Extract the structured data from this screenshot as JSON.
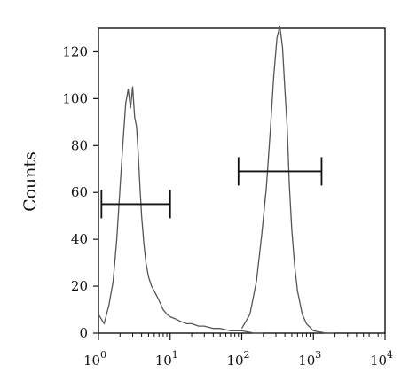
{
  "chart_data": {
    "type": "line",
    "title": "",
    "ylabel": "Counts",
    "xlabel": "",
    "x_scale": "log",
    "xlim": [
      1,
      10000
    ],
    "ylim": [
      0,
      130
    ],
    "grid": false,
    "x_ticks": [
      {
        "base": "10",
        "exp": "0",
        "value": 1
      },
      {
        "base": "10",
        "exp": "1",
        "value": 10
      },
      {
        "base": "10",
        "exp": "2",
        "value": 100
      },
      {
        "base": "10",
        "exp": "3",
        "value": 1000
      },
      {
        "base": "10",
        "exp": "4",
        "value": 10000
      }
    ],
    "y_ticks": [
      {
        "label": "0",
        "value": 0
      },
      {
        "label": "20",
        "value": 20
      },
      {
        "label": "40",
        "value": 40
      },
      {
        "label": "60",
        "value": 60
      },
      {
        "label": "80",
        "value": 80
      },
      {
        "label": "100",
        "value": 100
      },
      {
        "label": "120",
        "value": 120
      }
    ],
    "series": [
      {
        "color": "#555555",
        "x": [
          1,
          1.2,
          1.4,
          1.6,
          1.8,
          2.0,
          2.2,
          2.4,
          2.6,
          2.8,
          3.0,
          3.2,
          3.4,
          3.6,
          3.8,
          4.0,
          4.3,
          4.6,
          5.0,
          5.5,
          6.0,
          7.0,
          8.0,
          9.0,
          10,
          12,
          14,
          17,
          20,
          25,
          30,
          40,
          50,
          70,
          100,
          150,
          200
        ],
        "y": [
          8,
          4,
          12,
          22,
          40,
          62,
          82,
          98,
          104,
          96,
          105,
          92,
          88,
          76,
          62,
          50,
          38,
          30,
          24,
          20,
          18,
          14,
          10,
          8,
          7,
          6,
          5,
          4,
          4,
          3,
          3,
          2,
          2,
          1,
          1,
          0,
          0
        ]
      },
      {
        "color": "#555555",
        "x": [
          100,
          130,
          160,
          190,
          220,
          250,
          280,
          310,
          340,
          370,
          400,
          430,
          460,
          500,
          550,
          600,
          700,
          800,
          1000,
          1500,
          2000
        ],
        "y": [
          2,
          8,
          22,
          42,
          62,
          86,
          110,
          126,
          131,
          122,
          104,
          88,
          64,
          44,
          28,
          18,
          8,
          4,
          1,
          0,
          0
        ]
      }
    ],
    "gates": [
      {
        "x1": 1.1,
        "x2": 10,
        "y": 55
      },
      {
        "x1": 90,
        "x2": 1300,
        "y": 69
      }
    ]
  }
}
